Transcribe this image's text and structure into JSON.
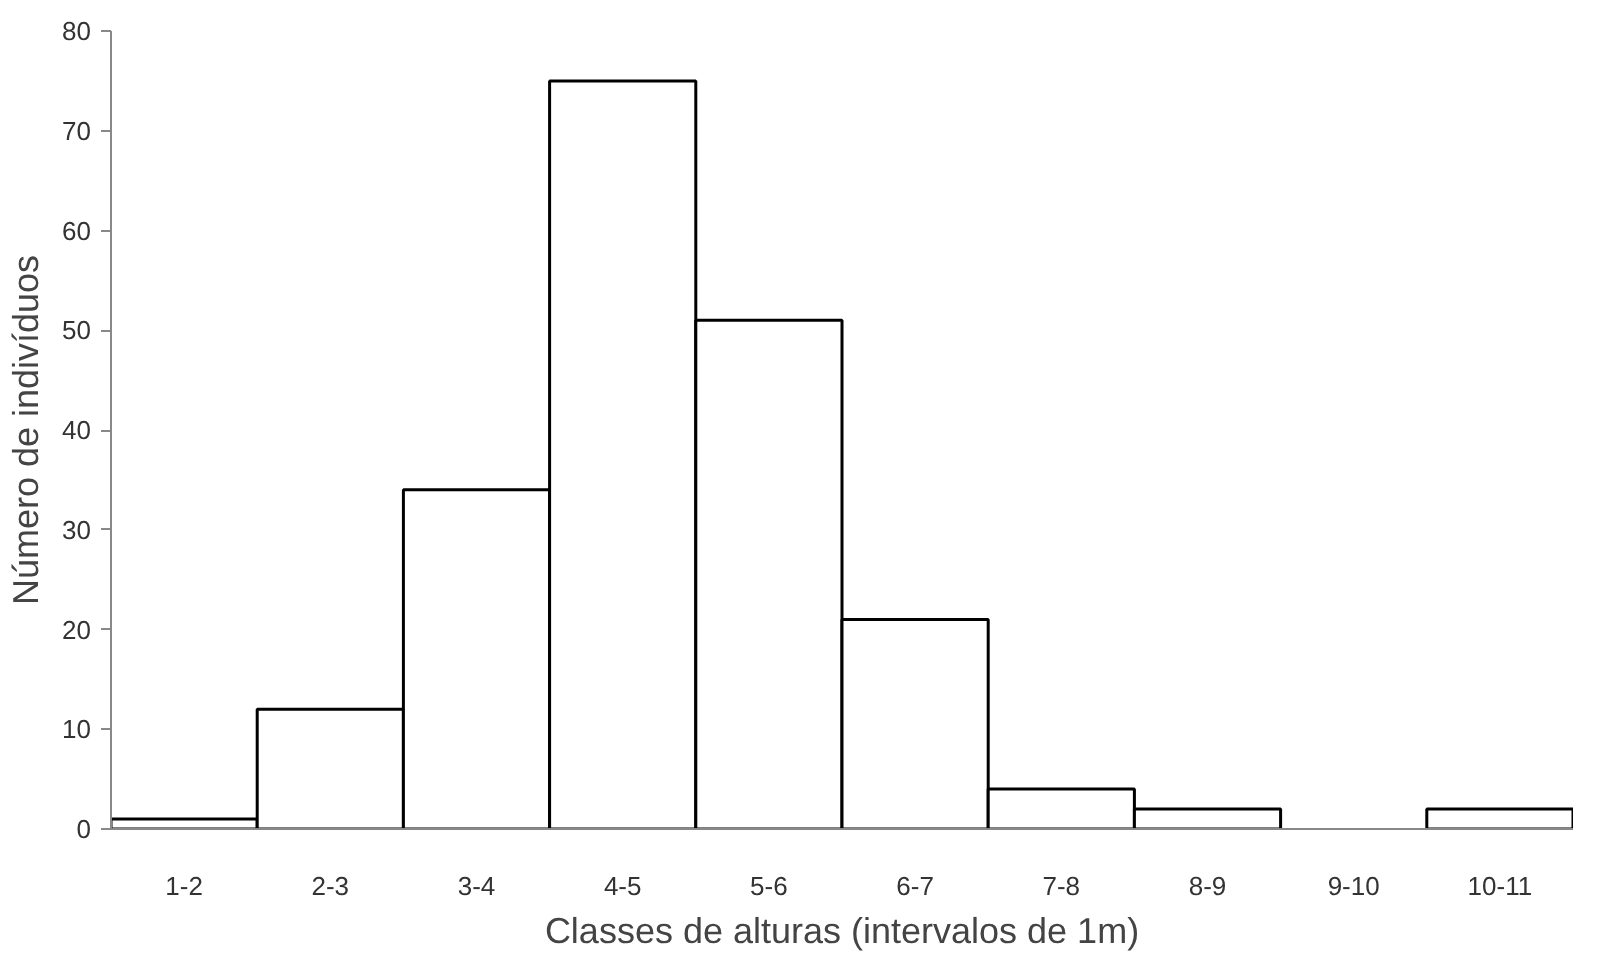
{
  "chart_data": {
    "type": "bar",
    "xlabel": "Classes de alturas (intervalos de 1m)",
    "ylabel": "Número de indivíduos",
    "categories": [
      "1-2",
      "2-3",
      "3-4",
      "4-5",
      "5-6",
      "6-7",
      "7-8",
      "8-9",
      "9-10",
      "10-11"
    ],
    "values": [
      1,
      12,
      34,
      75,
      51,
      21,
      4,
      2,
      0,
      2
    ],
    "color": "#ffffff",
    "ylim": [
      0,
      80
    ],
    "yticks": [
      0,
      10,
      20,
      30,
      40,
      50,
      60,
      70,
      80
    ],
    "grid": false
  }
}
